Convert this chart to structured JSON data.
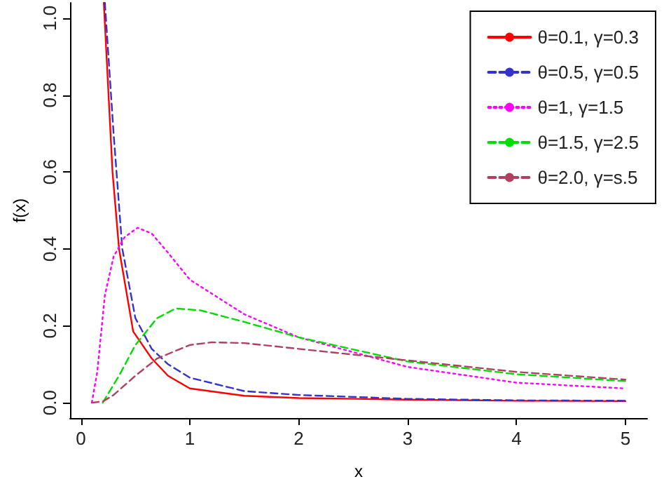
{
  "chart_data": {
    "type": "line",
    "xlabel": "x",
    "ylabel": "f(x)",
    "xlim": [
      -0.1,
      5.2
    ],
    "ylim": [
      -0.04,
      1.04
    ],
    "xticks": [
      0,
      1,
      2,
      3,
      4,
      5
    ],
    "yticks": [
      {
        "value": 0,
        "label": "0.0"
      },
      {
        "value": 0.2,
        "label": "0.2"
      },
      {
        "value": 0.4,
        "label": "0.4"
      },
      {
        "value": 0.6,
        "label": "0.6"
      },
      {
        "value": 0.8,
        "label": "0.8"
      },
      {
        "value": 1,
        "label": "1.0"
      }
    ],
    "grid": false,
    "legend": "top right",
    "marker": "none",
    "series": [
      {
        "name": "θ=0.1, γ=0.3",
        "color": "#ff0000",
        "line_style": "solid",
        "x": [
          0.21,
          0.29,
          0.35,
          0.48,
          0.65,
          0.8,
          1,
          1.5,
          2,
          3,
          4,
          5
        ],
        "values": [
          1.04,
          0.6,
          0.4,
          0.185,
          0.115,
          0.07,
          0.037,
          0.018,
          0.012,
          0.008,
          0.005,
          0.004
        ]
      },
      {
        "name": "θ=0.5, γ=0.5",
        "color": "#3333cc",
        "line_style": "dashed",
        "x": [
          0.22,
          0.3,
          0.38,
          0.5,
          0.65,
          0.8,
          1,
          1.5,
          2,
          3,
          4,
          5
        ],
        "values": [
          1.04,
          0.7,
          0.4,
          0.22,
          0.14,
          0.1,
          0.065,
          0.03,
          0.02,
          0.01,
          0.006,
          0.005
        ]
      },
      {
        "name": "θ=1, γ=1.5",
        "color": "#ff00ff",
        "line_style": "dotted",
        "x": [
          0.1,
          0.15,
          0.22,
          0.3,
          0.4,
          0.52,
          0.65,
          0.8,
          1,
          1.5,
          2,
          3,
          4,
          5
        ],
        "values": [
          0,
          0.08,
          0.28,
          0.38,
          0.43,
          0.455,
          0.44,
          0.39,
          0.32,
          0.23,
          0.17,
          0.093,
          0.052,
          0.037
        ]
      },
      {
        "name": "θ=1.5, γ=2.5",
        "color": "#00dd00",
        "line_style": "dashed",
        "x": [
          0.2,
          0.35,
          0.5,
          0.7,
          0.87,
          1.1,
          1.5,
          2,
          3,
          4,
          5
        ],
        "values": [
          0,
          0.07,
          0.15,
          0.22,
          0.245,
          0.24,
          0.21,
          0.17,
          0.107,
          0.074,
          0.056
        ]
      },
      {
        "name": "θ=2.0, γ=s.5",
        "color": "#b04060",
        "line_style": "dashed",
        "x": [
          0.1,
          0.2,
          0.3,
          0.5,
          0.7,
          1,
          1.2,
          1.5,
          2,
          3,
          4,
          5
        ],
        "values": [
          0,
          0.003,
          0.02,
          0.07,
          0.115,
          0.15,
          0.157,
          0.155,
          0.14,
          0.11,
          0.08,
          0.06
        ]
      }
    ]
  }
}
